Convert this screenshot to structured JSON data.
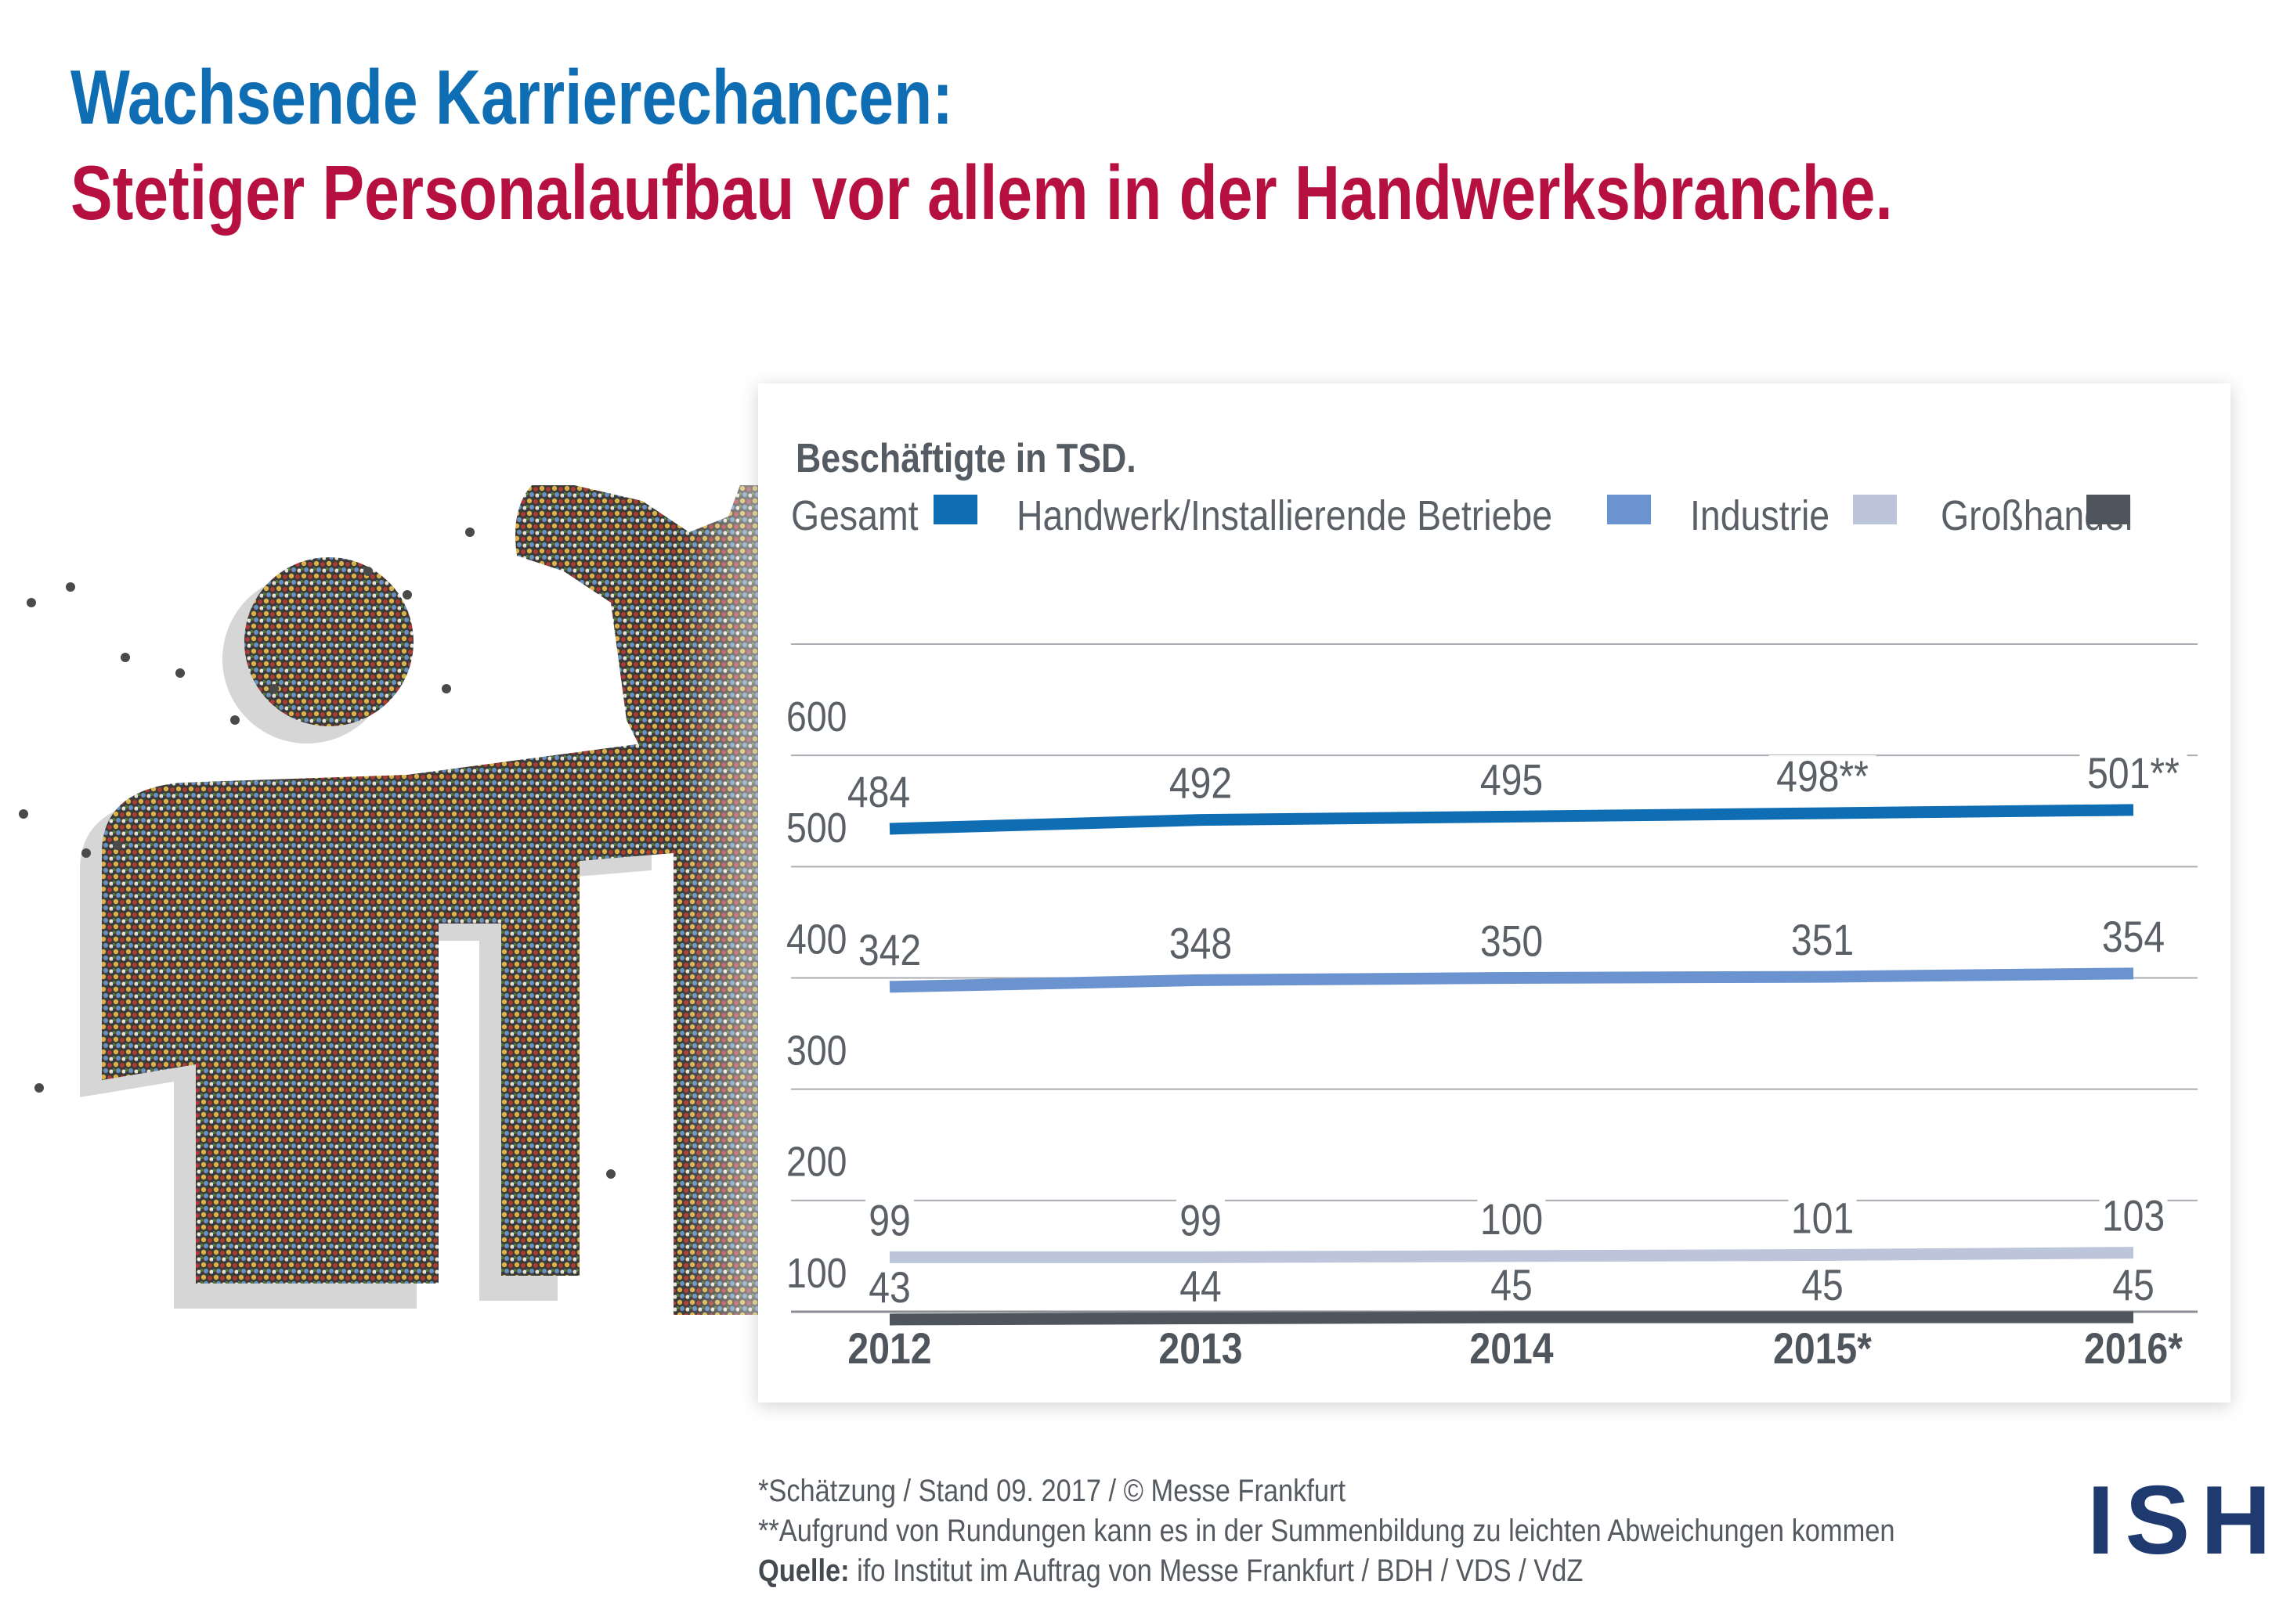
{
  "title": "Wachsende Karrierechancen:",
  "subtitle": "Stetiger Personalaufbau vor allem in der Handwerksbranche.",
  "chart_data": {
    "type": "line",
    "ylabel": "Beschäftigte in TSD.",
    "ylim": [
      50,
      650
    ],
    "yticks": [
      "600",
      "500",
      "400",
      "300",
      "200",
      "100"
    ],
    "categories": [
      "2012",
      "2013",
      "2014",
      "2015*",
      "2016*"
    ],
    "legend_placement": "top",
    "grid": true,
    "series": [
      {
        "name": "Gesamt",
        "color": "#0f6db3",
        "values": [
          484,
          492,
          495,
          498,
          501
        ],
        "labels": [
          "484",
          "492",
          "495",
          "498**",
          "501**"
        ]
      },
      {
        "name": "Handwerk/Installierende Betriebe",
        "color": "#6a93cf",
        "values": [
          342,
          348,
          350,
          351,
          354
        ],
        "labels": [
          "342",
          "348",
          "350",
          "351",
          "354"
        ]
      },
      {
        "name": "Industrie",
        "color": "#bcc5da",
        "values": [
          99,
          99,
          100,
          101,
          103
        ],
        "labels": [
          "99",
          "99",
          "100",
          "101",
          "103"
        ]
      },
      {
        "name": "Großhandel",
        "color": "#4e555c",
        "values": [
          43,
          44,
          45,
          45,
          45
        ],
        "labels": [
          "43",
          "44",
          "45",
          "45",
          "45"
        ]
      }
    ]
  },
  "footer": {
    "line1": "*Schätzung / Stand 09. 2017 / © Messe Frankfurt",
    "line2": "**Aufgrund von Rundungen kann es in der Summenbildung zu leichten Abweichungen kommen",
    "source_label": "Quelle:",
    "source_text": " ifo Institut im Auftrag von Messe Frankfurt / BDH / VDS / VdZ"
  },
  "logo": "ISH"
}
